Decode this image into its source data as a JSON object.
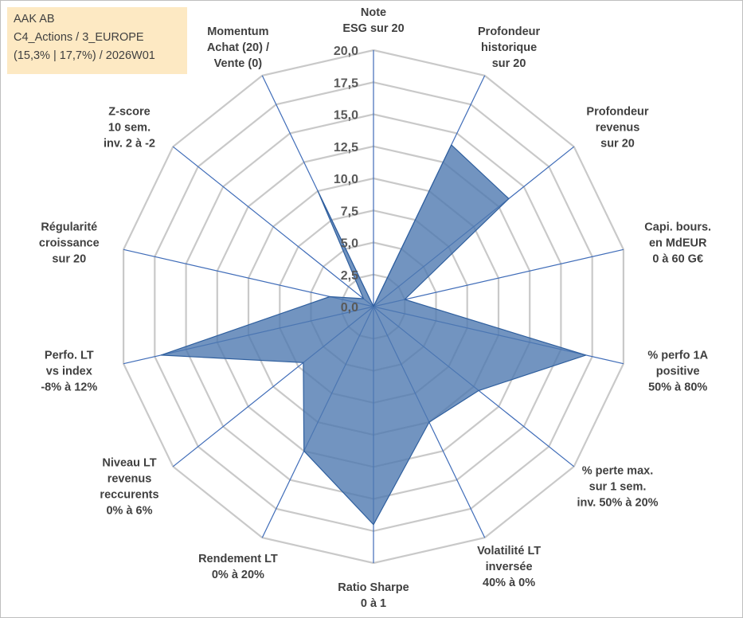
{
  "info": {
    "line1": "AAK AB",
    "line2": "C4_Actions / 3_EUROPE",
    "line3": "(15,3% | 17,7%) / 2026W01"
  },
  "chart_data": {
    "type": "radar",
    "rmax": 20,
    "ticks": [
      "0,0",
      "2,5",
      "5,0",
      "7,5",
      "10,0",
      "12,5",
      "15,0",
      "17,5",
      "20,0"
    ],
    "grid": true,
    "series": [
      {
        "values": [
          0,
          14.0,
          13.5,
          2.5,
          17.0,
          10.5,
          10.0,
          17.0,
          12.5,
          7.0,
          17.0,
          3.5,
          1.0,
          10.0
        ],
        "color": "#4f79b0"
      }
    ],
    "axes": [
      {
        "lines": [
          "Note",
          "ESG sur 20"
        ]
      },
      {
        "lines": [
          "Profondeur",
          "historique",
          "sur 20"
        ]
      },
      {
        "lines": [
          "Profondeur",
          "revenus",
          "sur 20"
        ]
      },
      {
        "lines": [
          "Capi. bours.",
          "en MdEUR",
          "0 à 60 G€"
        ]
      },
      {
        "lines": [
          "% perfo 1A",
          "positive",
          "50% à 80%"
        ]
      },
      {
        "lines": [
          "% perte max.",
          "sur 1 sem.",
          "inv. 50% à 20%"
        ]
      },
      {
        "lines": [
          "Volatilité LT",
          "inversée",
          "40% à 0%"
        ]
      },
      {
        "lines": [
          "Ratio Sharpe",
          "0 à 1"
        ]
      },
      {
        "lines": [
          "Rendement LT",
          "0% à 20%"
        ]
      },
      {
        "lines": [
          "Niveau LT",
          "revenus",
          "reccurents",
          "0% à 6%"
        ]
      },
      {
        "lines": [
          "Perfo. LT",
          "vs index",
          "-8% à 12%"
        ]
      },
      {
        "lines": [
          "Régularité",
          "croissance",
          "sur 20"
        ]
      },
      {
        "lines": [
          "Z-score",
          "10 sem.",
          "inv. 2 à -2"
        ]
      },
      {
        "lines": [
          "Momentum",
          "Achat (20) /",
          "Vente (0)"
        ]
      }
    ]
  }
}
